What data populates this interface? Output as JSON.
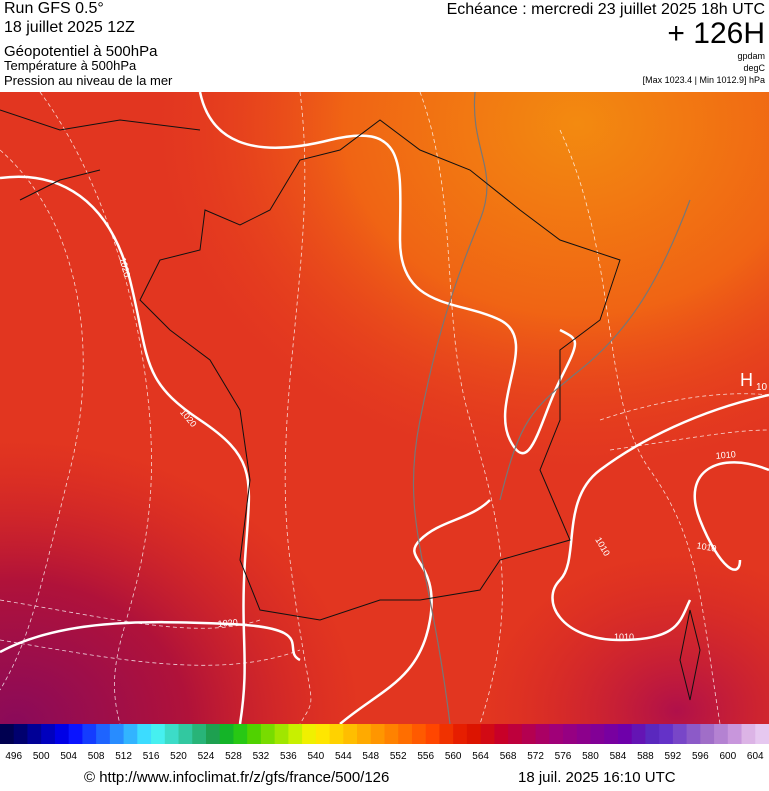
{
  "header": {
    "run": "Run GFS 0.5°",
    "date": "18 juillet 2025 12Z",
    "field": "Géopotentiel à 500hPa",
    "temperature": "Température à 500hPa",
    "pressure": "Pression au niveau de la mer",
    "echeance": "Echéance : mercredi 23 juillet 2025 18h UTC",
    "offset": "+ 126H",
    "unit_geo": "gpdam",
    "unit_temp": "degC",
    "range": "[Max 1023.4 | Min 1012.9] hPa"
  },
  "map": {
    "isobar_labels": [
      "1020",
      "1020",
      "1020",
      "1010",
      "1010",
      "1010",
      "1010"
    ],
    "high": "H",
    "high_value": "10"
  },
  "legend": {
    "ticks": [
      496,
      500,
      504,
      508,
      512,
      516,
      520,
      524,
      528,
      532,
      536,
      540,
      544,
      548,
      552,
      556,
      560,
      564,
      568,
      572,
      576,
      580,
      584,
      588,
      592,
      596,
      600,
      604
    ],
    "colors": [
      "#000050",
      "#00006e",
      "#000096",
      "#0000be",
      "#0000e6",
      "#0a14ff",
      "#143cff",
      "#1e64ff",
      "#288cff",
      "#32b4ff",
      "#3cdcff",
      "#46f0f0",
      "#3cdcc8",
      "#32c8a0",
      "#28b478",
      "#1ea050",
      "#14b428",
      "#28c814",
      "#50d200",
      "#78dc00",
      "#a0e600",
      "#c8f000",
      "#f0f000",
      "#ffe600",
      "#ffd200",
      "#ffbe00",
      "#ffaa00",
      "#ff9600",
      "#ff8200",
      "#ff6e00",
      "#ff5a00",
      "#ff4600",
      "#f03200",
      "#e61e00",
      "#dc1400",
      "#d20a14",
      "#c80028",
      "#be003c",
      "#b40050",
      "#aa0064",
      "#a00078",
      "#960082",
      "#8c008c",
      "#820096",
      "#7800a0",
      "#6e00aa",
      "#6414b4",
      "#5a28be",
      "#6432c8",
      "#7846c8",
      "#8c5ac8",
      "#a06ec8",
      "#b482d2",
      "#c896dc",
      "#dcb4e6",
      "#e6c8f0"
    ]
  },
  "footer": {
    "url": "© http://www.infoclimat.fr/z/gfs/france/500/126",
    "timestamp": "18 juil. 2025 16:10 UTC"
  }
}
